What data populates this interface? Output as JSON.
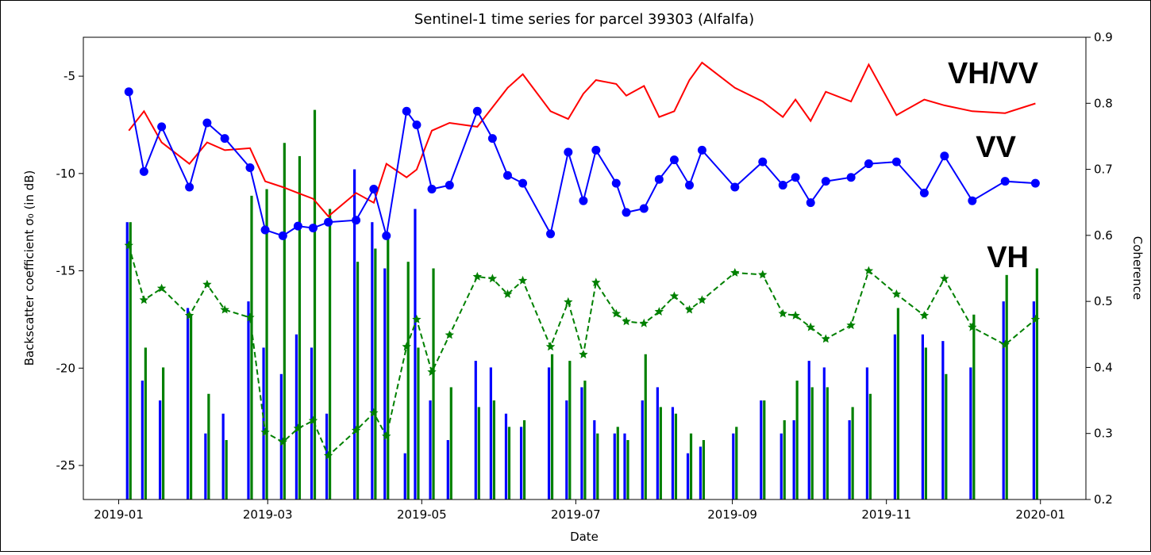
{
  "chart_data": {
    "type": "line",
    "title": "Sentinel-1 time series for parcel 39303 (Alfalfa)",
    "x_label": "Date",
    "y_label": "Backscatter coefficient σ₀ (in dB)",
    "y2_label": "Coherence",
    "x": [
      4,
      10,
      17,
      28,
      35,
      42,
      52,
      58,
      65,
      71,
      77,
      83,
      94,
      101,
      106,
      114,
      118,
      124,
      131,
      142,
      148,
      154,
      160,
      171,
      178,
      184,
      189,
      197,
      201,
      208,
      214,
      220,
      226,
      231,
      244,
      255,
      263,
      268,
      274,
      280,
      290,
      297,
      308,
      319,
      327,
      338,
      351,
      363
    ],
    "xlim": [
      -14,
      383
    ],
    "xticks": [
      {
        "value": 0,
        "label": "2019-01"
      },
      {
        "value": 59,
        "label": "2019-03"
      },
      {
        "value": 120,
        "label": "2019-05"
      },
      {
        "value": 181,
        "label": "2019-07"
      },
      {
        "value": 243,
        "label": "2019-09"
      },
      {
        "value": 304,
        "label": "2019-11"
      },
      {
        "value": 365,
        "label": "2020-01"
      }
    ],
    "ylim": [
      -26.75,
      -3.0
    ],
    "yticks": [
      -25,
      -20,
      -15,
      -10,
      -5
    ],
    "y2lim": [
      0.2,
      0.9
    ],
    "y2ticks": [
      0.2,
      0.3,
      0.4,
      0.5,
      0.6,
      0.7,
      0.8,
      0.9
    ],
    "grid": false,
    "series": [
      {
        "name": "VH/VV",
        "color": "#ff0000",
        "linestyle": "solid",
        "marker": "none",
        "values": [
          -7.8,
          -6.8,
          -8.4,
          -9.5,
          -8.4,
          -8.8,
          -8.7,
          -10.4,
          -10.7,
          -11.0,
          -11.3,
          -12.2,
          -11.0,
          -11.5,
          -9.5,
          -10.2,
          -9.8,
          -7.8,
          -7.4,
          -7.6,
          -6.6,
          -5.6,
          -4.9,
          -6.8,
          -7.2,
          -5.9,
          -5.2,
          -5.4,
          -6.0,
          -5.5,
          -7.1,
          -6.8,
          -5.2,
          -4.3,
          -5.6,
          -6.3,
          -7.1,
          -6.2,
          -7.3,
          -5.8,
          -6.3,
          -4.4,
          -7.0,
          -6.2,
          -6.5,
          -6.8,
          -6.9,
          -6.4
        ]
      },
      {
        "name": "VV",
        "color": "#0000ff",
        "linestyle": "solid",
        "marker": "circle",
        "values": [
          -5.8,
          -9.9,
          -7.6,
          -10.7,
          -7.4,
          -8.2,
          -9.7,
          -12.9,
          -13.2,
          -12.7,
          -12.8,
          -12.5,
          -12.4,
          -10.8,
          -13.2,
          -6.8,
          -7.5,
          -10.8,
          -10.6,
          -6.8,
          -8.2,
          -10.1,
          -10.5,
          -13.1,
          -8.9,
          -11.4,
          -8.8,
          -10.5,
          -12.0,
          -11.8,
          -10.3,
          -9.3,
          -10.6,
          -8.8,
          -10.7,
          -9.4,
          -10.6,
          -10.2,
          -11.5,
          -10.4,
          -10.2,
          -9.5,
          -9.4,
          -11.0,
          -9.1,
          -11.4,
          -10.4,
          -10.5
        ]
      },
      {
        "name": "VH",
        "color": "#008000",
        "linestyle": "dashed",
        "marker": "star",
        "values": [
          -13.7,
          -16.5,
          -15.9,
          -17.3,
          -15.7,
          -17.0,
          -17.4,
          -23.3,
          -23.8,
          -23.1,
          -22.7,
          -24.5,
          -23.2,
          -22.3,
          -23.5,
          -18.9,
          -17.5,
          -20.2,
          -18.3,
          -15.3,
          -15.4,
          -16.2,
          -15.5,
          -18.9,
          -16.6,
          -19.3,
          -15.6,
          -17.2,
          -17.6,
          -17.7,
          -17.1,
          -16.3,
          -17.0,
          -16.5,
          -15.1,
          -15.2,
          -17.2,
          -17.3,
          -17.9,
          -18.5,
          -17.8,
          -15.0,
          -16.2,
          -17.3,
          -15.4,
          -17.9,
          -18.8,
          -17.5
        ]
      },
      {
        "color": "#0000ff",
        "axis": "y2",
        "style": "bar",
        "values": [
          0.62,
          0.38,
          0.35,
          0.49,
          0.3,
          0.33,
          0.5,
          0.43,
          0.39,
          0.45,
          0.43,
          0.33,
          0.7,
          0.62,
          0.55,
          0.27,
          0.64,
          0.35,
          0.29,
          0.41,
          0.4,
          0.33,
          0.31,
          0.4,
          0.35,
          0.37,
          0.32,
          0.3,
          0.3,
          0.35,
          0.37,
          0.34,
          0.27,
          0.28,
          0.3,
          0.35,
          0.3,
          0.32,
          0.41,
          0.4,
          0.32,
          0.4,
          0.45,
          0.45,
          0.44,
          0.4,
          0.5,
          0.5
        ]
      },
      {
        "color": "#008000",
        "axis": "y2",
        "style": "bar",
        "values": [
          0.62,
          0.43,
          0.4,
          0.48,
          0.36,
          0.29,
          0.66,
          0.67,
          0.74,
          0.72,
          0.79,
          0.64,
          0.56,
          0.58,
          0.6,
          0.56,
          0.43,
          0.55,
          0.37,
          0.34,
          0.35,
          0.31,
          0.32,
          0.42,
          0.41,
          0.38,
          0.3,
          0.31,
          0.29,
          0.42,
          0.34,
          0.33,
          0.3,
          0.29,
          0.31,
          0.35,
          0.32,
          0.38,
          0.37,
          0.37,
          0.34,
          0.36,
          0.49,
          0.43,
          0.39,
          0.48,
          0.54,
          0.55
        ]
      }
    ]
  }
}
